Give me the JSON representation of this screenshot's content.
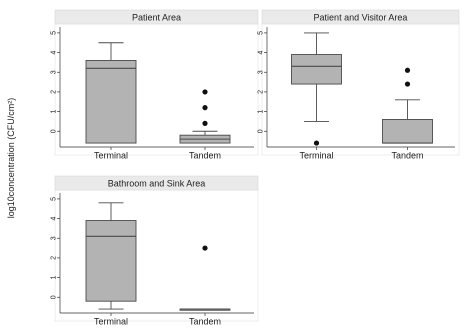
{
  "chart_data": {
    "type": "box",
    "ylabel": "log10concentration (CFU/cm²)",
    "categories": [
      "Terminal",
      "Tandem"
    ],
    "ylim": [
      -0.8,
      5.3
    ],
    "yticks": [
      "0",
      "1",
      "2",
      "3",
      "4",
      "5"
    ],
    "grid": false,
    "panels": [
      {
        "title": "Patient Area",
        "boxes": [
          {
            "category": "Terminal",
            "whisker_low": -0.6,
            "q1": -0.6,
            "median": 3.2,
            "q3": 3.6,
            "whisker_high": 4.5,
            "outliers": []
          },
          {
            "category": "Tandem",
            "whisker_low": -0.6,
            "q1": -0.6,
            "median": -0.4,
            "q3": -0.2,
            "whisker_high": 0.0,
            "outliers": [
              0.4,
              1.2,
              2.0
            ]
          }
        ]
      },
      {
        "title": "Patient and Visitor Area",
        "boxes": [
          {
            "category": "Terminal",
            "whisker_low": 0.5,
            "q1": 2.4,
            "median": 3.3,
            "q3": 3.9,
            "whisker_high": 5.0,
            "outliers": [
              -0.6
            ]
          },
          {
            "category": "Tandem",
            "whisker_low": -0.6,
            "q1": -0.6,
            "median": -0.6,
            "q3": 0.6,
            "whisker_high": 1.6,
            "outliers": [
              2.4,
              3.1
            ]
          }
        ]
      },
      {
        "title": "Bathroom and Sink Area",
        "boxes": [
          {
            "category": "Terminal",
            "whisker_low": -0.6,
            "q1": -0.2,
            "median": 3.1,
            "q3": 3.9,
            "whisker_high": 4.8,
            "outliers": []
          },
          {
            "category": "Tandem",
            "whisker_low": -0.6,
            "q1": -0.6,
            "median": -0.6,
            "q3": -0.6,
            "whisker_high": -0.6,
            "outliers": [
              2.5
            ]
          }
        ]
      }
    ]
  },
  "colors": {
    "box_fill": "#b3b3b3",
    "box_stroke": "#4a4a4a",
    "title_strip": "#eaeaea",
    "point": "#111111"
  }
}
